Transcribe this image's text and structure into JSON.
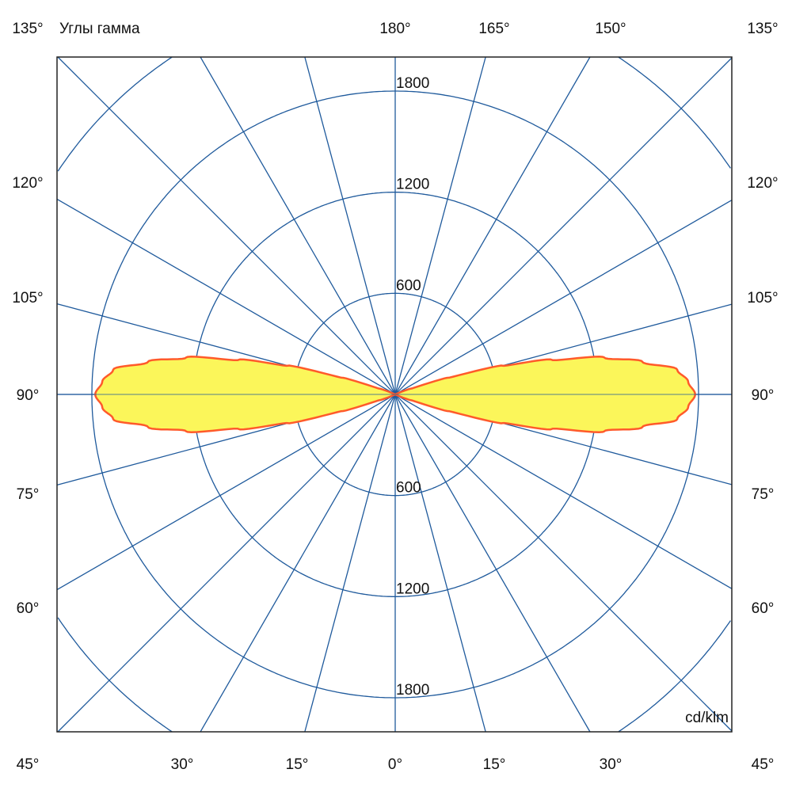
{
  "chart_data": {
    "type": "polar",
    "title": "Углы гамма",
    "unit_label": "cd/klm",
    "radial_ticks": [
      600,
      1200,
      1800
    ],
    "radial_tick_labels": [
      "600",
      "1200",
      "1800"
    ],
    "radial_max": 2400,
    "angle_step_deg": 15,
    "grid": true,
    "angle_labels": {
      "top": [
        "135°",
        "180°",
        "165°",
        "150°",
        "135°"
      ],
      "left": [
        "120°",
        "105°",
        "90°",
        "75°",
        "60°"
      ],
      "right": [
        "120°",
        "105°",
        "90°",
        "75°",
        "60°"
      ],
      "bottom": [
        "45°",
        "30°",
        "15°",
        "0°",
        "15°",
        "30°",
        "45°"
      ]
    },
    "series": [
      {
        "deviation_from_90_deg": [
          0,
          2.5,
          5,
          7.5,
          10,
          12.5,
          15,
          17.5,
          20,
          25
        ],
        "intensity_cd_klm": [
          1780,
          1740,
          1680,
          1480,
          1260,
          950,
          660,
          330,
          100,
          0
        ],
        "symmetric": "both sides, above and below 90°"
      }
    ],
    "colors": {
      "grid": "#1f5a9c",
      "curve_stroke": "#ff5a2a",
      "curve_fill": "#fbf65a",
      "frame": "#222222"
    }
  }
}
